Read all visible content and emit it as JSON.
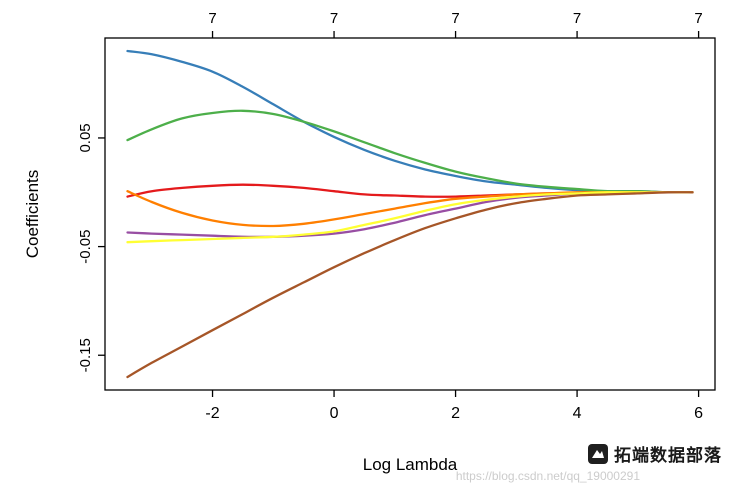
{
  "chart_data": {
    "type": "line",
    "title": "",
    "xlabel": "Log Lambda",
    "ylabel": "Coefficients",
    "xlim": [
      -3.77,
      6.27
    ],
    "ylim": [
      -0.182,
      0.142
    ],
    "grid": false,
    "legend": "none",
    "x_ticks": [
      "-2",
      "0",
      "2",
      "4",
      "6"
    ],
    "x_tick_positions": [
      -2,
      0,
      2,
      4,
      6
    ],
    "y_ticks": [
      "0.05",
      "-0.05",
      "-0.15"
    ],
    "y_tick_positions": [
      0.05,
      -0.05,
      -0.15
    ],
    "top_axis": {
      "labels": [
        "7",
        "7",
        "7",
        "7",
        "7"
      ],
      "positions": [
        -2,
        0,
        2,
        4,
        6
      ]
    },
    "x": [
      -3.4,
      -3.0,
      -2.5,
      -2.0,
      -1.5,
      -1.0,
      -0.5,
      0.0,
      0.5,
      1.0,
      1.5,
      2.0,
      2.5,
      3.0,
      3.5,
      4.0,
      4.5,
      5.0,
      5.5,
      5.9
    ],
    "series": [
      {
        "name": "blue",
        "color": "#377EB8",
        "values": [
          0.13,
          0.127,
          0.12,
          0.111,
          0.097,
          0.081,
          0.065,
          0.051,
          0.039,
          0.029,
          0.021,
          0.015,
          0.01,
          0.007,
          0.004,
          0.002,
          0.001,
          0.001,
          0.0,
          0.0
        ]
      },
      {
        "name": "green",
        "color": "#4DAF4A",
        "values": [
          0.048,
          0.058,
          0.068,
          0.073,
          0.075,
          0.072,
          0.065,
          0.056,
          0.046,
          0.036,
          0.027,
          0.019,
          0.013,
          0.008,
          0.005,
          0.003,
          0.001,
          0.001,
          0.0,
          0.0
        ]
      },
      {
        "name": "red",
        "color": "#E41A1C",
        "values": [
          -0.004,
          0.001,
          0.004,
          0.006,
          0.007,
          0.006,
          0.004,
          0.001,
          -0.002,
          -0.003,
          -0.004,
          -0.004,
          -0.003,
          -0.002,
          -0.001,
          -0.001,
          0.0,
          0.0,
          0.0,
          0.0
        ]
      },
      {
        "name": "orange",
        "color": "#FF7F00",
        "values": [
          0.001,
          -0.009,
          -0.019,
          -0.026,
          -0.03,
          -0.031,
          -0.029,
          -0.025,
          -0.02,
          -0.015,
          -0.01,
          -0.006,
          -0.004,
          -0.002,
          -0.001,
          0.0,
          0.0,
          0.0,
          0.0,
          0.0
        ]
      },
      {
        "name": "purple",
        "color": "#984EA3",
        "values": [
          -0.037,
          -0.038,
          -0.039,
          -0.04,
          -0.041,
          -0.041,
          -0.04,
          -0.038,
          -0.034,
          -0.028,
          -0.021,
          -0.015,
          -0.009,
          -0.005,
          -0.003,
          -0.001,
          -0.001,
          0.0,
          0.0,
          0.0
        ]
      },
      {
        "name": "yellow",
        "color": "#FFFF33",
        "values": [
          -0.046,
          -0.045,
          -0.044,
          -0.043,
          -0.042,
          -0.041,
          -0.039,
          -0.036,
          -0.03,
          -0.024,
          -0.017,
          -0.011,
          -0.007,
          -0.004,
          -0.002,
          -0.001,
          0.0,
          0.0,
          0.0,
          0.0
        ]
      },
      {
        "name": "brown",
        "color": "#A65628",
        "values": [
          -0.17,
          -0.157,
          -0.142,
          -0.127,
          -0.112,
          -0.097,
          -0.083,
          -0.069,
          -0.056,
          -0.044,
          -0.033,
          -0.024,
          -0.016,
          -0.01,
          -0.006,
          -0.003,
          -0.002,
          -0.001,
          0.0,
          0.0
        ]
      }
    ]
  },
  "watermark": {
    "brand": "拓端数据部落",
    "url": "https://blog.csdn.net/qq_19000291"
  }
}
